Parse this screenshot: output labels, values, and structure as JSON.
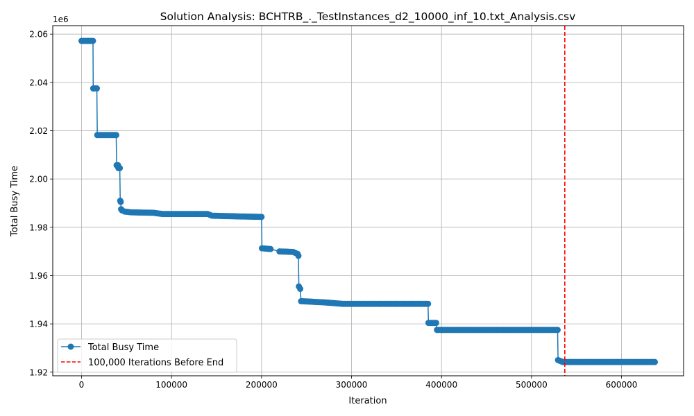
{
  "chart_data": {
    "type": "line",
    "title": "Solution Analysis: BCHTRB_._TestInstances_d2_10000_inf_10.txt_Analysis.csv",
    "xlabel": "Iteration",
    "ylabel": "Total Busy Time",
    "y_offset_label": "1e6",
    "xlim": [
      -32000,
      669000
    ],
    "ylim": [
      1.9185,
      2.0635
    ],
    "xticks": [
      0,
      100000,
      200000,
      300000,
      400000,
      500000,
      600000
    ],
    "xtick_labels": [
      "0",
      "100000",
      "200000",
      "300000",
      "400000",
      "500000",
      "600000"
    ],
    "yticks": [
      1.92,
      1.94,
      1.96,
      1.98,
      2.0,
      2.02,
      2.04,
      2.06
    ],
    "ytick_labels": [
      "1.92",
      "1.94",
      "1.96",
      "1.98",
      "2.00",
      "2.02",
      "2.04",
      "2.06"
    ],
    "grid": true,
    "legend_position": "lower-left",
    "series": [
      {
        "name": "Total Busy Time",
        "color": "#1f77b4",
        "marker": "circle",
        "x": [
          0,
          12700,
          13000,
          17000,
          17500,
          38500,
          39000,
          40500,
          41000,
          42500,
          43000,
          43500,
          44000,
          45000,
          48000,
          55000,
          80000,
          90000,
          140000,
          145000,
          175000,
          200000,
          200500,
          210000,
          220000,
          235000,
          240000,
          241000,
          241500,
          243000,
          244000,
          270000,
          290000,
          385000,
          385500,
          394000,
          395000,
          529000,
          529500,
          535000,
          637000
        ],
        "y": [
          2.0572,
          2.0572,
          2.0375,
          2.0375,
          2.0182,
          2.0182,
          2.0057,
          2.0057,
          2.0045,
          2.0045,
          1.991,
          1.9905,
          1.9875,
          1.987,
          1.9865,
          1.9862,
          1.986,
          1.9855,
          1.9855,
          1.9848,
          1.9845,
          1.9843,
          1.9713,
          1.971,
          1.97,
          1.9698,
          1.969,
          1.9682,
          1.9555,
          1.9545,
          1.9494,
          1.9489,
          1.9483,
          1.9483,
          1.9404,
          1.9404,
          1.9375,
          1.9375,
          1.925,
          1.9242,
          1.9242
        ]
      }
    ],
    "vline": {
      "name": "100,000 Iterations Before End",
      "x": 537000,
      "color": "#ff0000",
      "style": "dashed"
    }
  }
}
